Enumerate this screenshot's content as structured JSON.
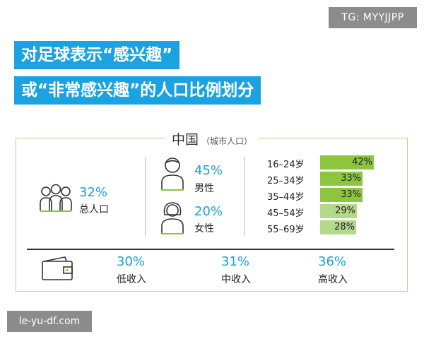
{
  "watermark_top": "TG: MYYJJPP",
  "watermark_bottom": "le-yu-df.com",
  "title_line1": "对足球表示“感兴趣”",
  "title_line2": "或“非常感兴趣”的人口比例划分",
  "frame_title": "中国",
  "frame_subtitle": "（城市人口）",
  "total": {
    "value": "32%",
    "label": "总人口"
  },
  "male": {
    "value": "45%",
    "label": "男性"
  },
  "female": {
    "value": "20%",
    "label": "女性"
  },
  "income": [
    {
      "value": "30%",
      "label": "低收入"
    },
    {
      "value": "31%",
      "label": "中收入"
    },
    {
      "value": "36%",
      "label": "高收入"
    }
  ],
  "colors": {
    "title_bg": "#1aa3e0",
    "highlight": "#1a9fd9",
    "bar_dark": "#8cc63f",
    "bar_light": "#b5d98a",
    "frame": "#c6d08a"
  },
  "chart_data": {
    "type": "bar",
    "orientation": "horizontal",
    "categories": [
      "16–24岁",
      "25–34岁",
      "35–44岁",
      "45–54岁",
      "55–69岁"
    ],
    "values": [
      42,
      33,
      33,
      29,
      28
    ],
    "value_labels": [
      "42%",
      "33%",
      "33%",
      "29%",
      "28%"
    ],
    "unit": "%",
    "xlim": [
      0,
      42
    ]
  }
}
